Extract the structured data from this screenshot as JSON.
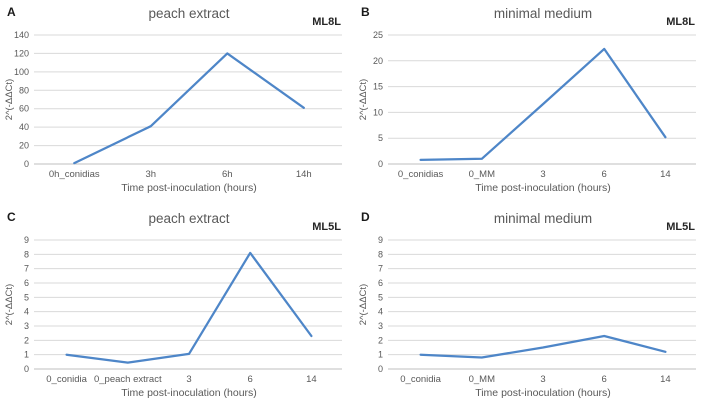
{
  "figure": {
    "description": "Four-panel qPCR expression figure",
    "background": "#ffffff"
  },
  "colors": {
    "line": "#4e86c8",
    "grid": "#d9d9d9",
    "axis": "#bfbfbf",
    "text": "#595959",
    "corner_label": "#262626",
    "panel_letter": "#1a1a1a"
  },
  "chart_data": [
    {
      "panel": "A",
      "type": "line",
      "title": "peach extract",
      "corner_label": "ML8L",
      "ylabel": "2^(-ΔΔCt)",
      "xlabel": "Time post-inoculation (hours)",
      "categories": [
        "0h_conidias",
        "3h",
        "6h",
        "14h"
      ],
      "values": [
        1,
        41,
        120,
        61
      ],
      "ylim": [
        0,
        140
      ],
      "ytick_step": 20,
      "grid": true,
      "legend": "none"
    },
    {
      "panel": "B",
      "type": "line",
      "title": "minimal medium",
      "corner_label": "ML8L",
      "ylabel": "2^(-ΔΔCt)",
      "xlabel": "Time post-inoculation (hours)",
      "categories": [
        "0_conidias",
        "0_MM",
        "3",
        "6",
        "14"
      ],
      "values": [
        0.8,
        1,
        11.6,
        22.3,
        5.2
      ],
      "ylim": [
        0,
        25
      ],
      "ytick_step": 5,
      "grid": true,
      "legend": "none"
    },
    {
      "panel": "C",
      "type": "line",
      "title": "peach extract",
      "corner_label": "ML5L",
      "ylabel": "2^(-ΔΔCt)",
      "xlabel": "Time post-inoculation (hours)",
      "categories": [
        "0_conidia",
        "0_peach extract",
        "3",
        "6",
        "14"
      ],
      "values": [
        1,
        0.45,
        1.05,
        8.1,
        2.3
      ],
      "ylim": [
        0,
        9
      ],
      "ytick_step": 1,
      "grid": true,
      "legend": "none"
    },
    {
      "panel": "D",
      "type": "line",
      "title": "minimal medium",
      "corner_label": "ML5L",
      "ylabel": "2^(-ΔΔCt)",
      "xlabel": "Time post-inoculation (hours)",
      "categories": [
        "0_conidia",
        "0_MM",
        "3",
        "6",
        "14"
      ],
      "values": [
        1,
        0.8,
        1.5,
        2.3,
        1.2
      ],
      "ylim": [
        0,
        9
      ],
      "ytick_step": 1,
      "grid": true,
      "legend": "none"
    }
  ]
}
